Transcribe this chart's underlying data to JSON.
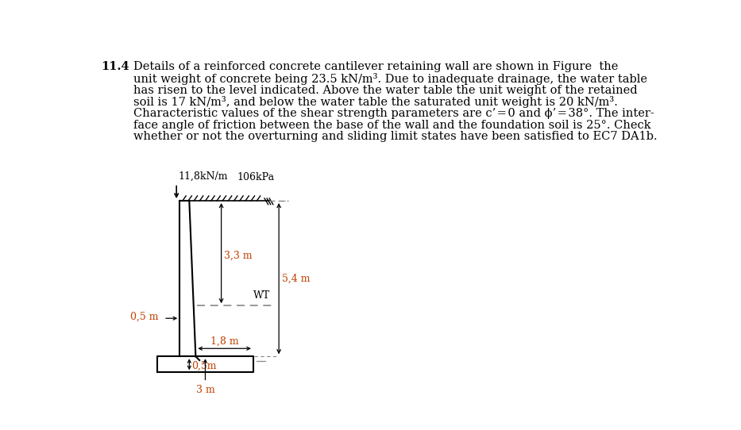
{
  "title_num": "11.4",
  "para_line1": "Details of a reinforced concrete cantilever retaining wall are shown in Figure  the",
  "para_line2": "unit weight of concrete being 23.5 kN/m³. Due to inadequate drainage, the water table",
  "para_line3": "has risen to the level indicated. Above the water table the unit weight of the retained",
  "para_line4": "soil is 17 kN/m³, and below the water table the saturated unit weight is 20 kN/m³.",
  "para_line5": "Characteristic values of the shear strength parameters are c’ = 0 and ϕ’ = 38°. The inter-",
  "para_line6": "face angle of friction between the base of the wall and the foundation soil is 25°. Check",
  "para_line7": "whether or not the overturning and sliding limit states have been satisfied to EC7 DA1b.",
  "label_11_8": "11,8kN/m",
  "label_106kPa": "106kPa",
  "label_3_3m": "3,3 m",
  "label_WT": "WT",
  "label_5_4m": "5,4 m",
  "label_0_5m_horiz": "0,5 m",
  "label_1_8m": "1,8 m",
  "label_0_5m_vert": "0,5m",
  "label_3m": "3 m",
  "wall_lw": 1.5,
  "dim_lw": 0.9,
  "hatch_lw": 1.0,
  "wall_color": "#000000",
  "dim_color": "#c04000",
  "dash_color": "#888888",
  "text_color": "#000000",
  "bg_color": "#ffffff",
  "text_fontsize": 10.5,
  "dim_fontsize": 9,
  "label_fontsize": 9
}
